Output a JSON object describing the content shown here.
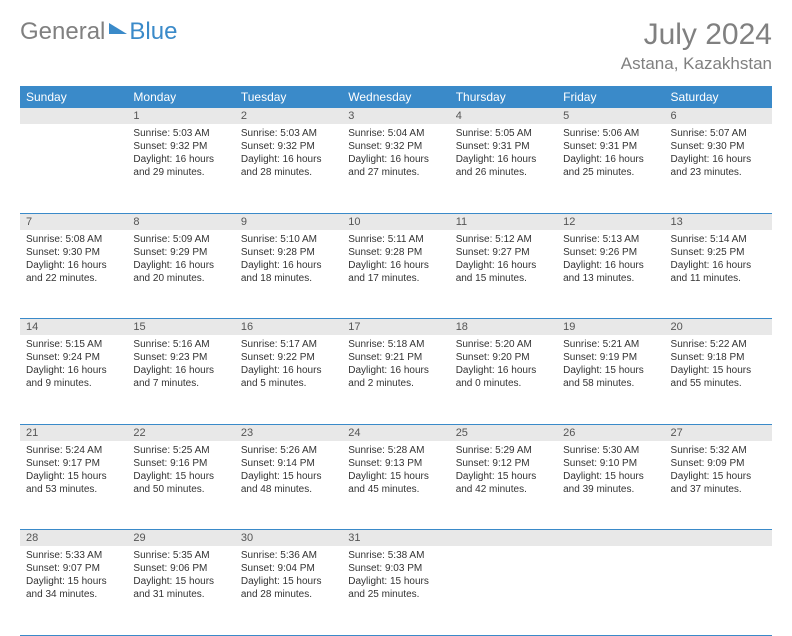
{
  "brand": {
    "part1": "General",
    "part2": "Blue"
  },
  "title": "July 2024",
  "location": "Astana, Kazakhstan",
  "colors": {
    "accent": "#3a8ac9",
    "gray_text": "#808080",
    "daynum_bg": "#e8e8e8",
    "cell_text": "#333333",
    "background": "#ffffff"
  },
  "weekdays": [
    "Sunday",
    "Monday",
    "Tuesday",
    "Wednesday",
    "Thursday",
    "Friday",
    "Saturday"
  ],
  "weeks": [
    [
      null,
      {
        "n": "1",
        "sunrise": "Sunrise: 5:03 AM",
        "sunset": "Sunset: 9:32 PM",
        "day1": "Daylight: 16 hours",
        "day2": "and 29 minutes."
      },
      {
        "n": "2",
        "sunrise": "Sunrise: 5:03 AM",
        "sunset": "Sunset: 9:32 PM",
        "day1": "Daylight: 16 hours",
        "day2": "and 28 minutes."
      },
      {
        "n": "3",
        "sunrise": "Sunrise: 5:04 AM",
        "sunset": "Sunset: 9:32 PM",
        "day1": "Daylight: 16 hours",
        "day2": "and 27 minutes."
      },
      {
        "n": "4",
        "sunrise": "Sunrise: 5:05 AM",
        "sunset": "Sunset: 9:31 PM",
        "day1": "Daylight: 16 hours",
        "day2": "and 26 minutes."
      },
      {
        "n": "5",
        "sunrise": "Sunrise: 5:06 AM",
        "sunset": "Sunset: 9:31 PM",
        "day1": "Daylight: 16 hours",
        "day2": "and 25 minutes."
      },
      {
        "n": "6",
        "sunrise": "Sunrise: 5:07 AM",
        "sunset": "Sunset: 9:30 PM",
        "day1": "Daylight: 16 hours",
        "day2": "and 23 minutes."
      }
    ],
    [
      {
        "n": "7",
        "sunrise": "Sunrise: 5:08 AM",
        "sunset": "Sunset: 9:30 PM",
        "day1": "Daylight: 16 hours",
        "day2": "and 22 minutes."
      },
      {
        "n": "8",
        "sunrise": "Sunrise: 5:09 AM",
        "sunset": "Sunset: 9:29 PM",
        "day1": "Daylight: 16 hours",
        "day2": "and 20 minutes."
      },
      {
        "n": "9",
        "sunrise": "Sunrise: 5:10 AM",
        "sunset": "Sunset: 9:28 PM",
        "day1": "Daylight: 16 hours",
        "day2": "and 18 minutes."
      },
      {
        "n": "10",
        "sunrise": "Sunrise: 5:11 AM",
        "sunset": "Sunset: 9:28 PM",
        "day1": "Daylight: 16 hours",
        "day2": "and 17 minutes."
      },
      {
        "n": "11",
        "sunrise": "Sunrise: 5:12 AM",
        "sunset": "Sunset: 9:27 PM",
        "day1": "Daylight: 16 hours",
        "day2": "and 15 minutes."
      },
      {
        "n": "12",
        "sunrise": "Sunrise: 5:13 AM",
        "sunset": "Sunset: 9:26 PM",
        "day1": "Daylight: 16 hours",
        "day2": "and 13 minutes."
      },
      {
        "n": "13",
        "sunrise": "Sunrise: 5:14 AM",
        "sunset": "Sunset: 9:25 PM",
        "day1": "Daylight: 16 hours",
        "day2": "and 11 minutes."
      }
    ],
    [
      {
        "n": "14",
        "sunrise": "Sunrise: 5:15 AM",
        "sunset": "Sunset: 9:24 PM",
        "day1": "Daylight: 16 hours",
        "day2": "and 9 minutes."
      },
      {
        "n": "15",
        "sunrise": "Sunrise: 5:16 AM",
        "sunset": "Sunset: 9:23 PM",
        "day1": "Daylight: 16 hours",
        "day2": "and 7 minutes."
      },
      {
        "n": "16",
        "sunrise": "Sunrise: 5:17 AM",
        "sunset": "Sunset: 9:22 PM",
        "day1": "Daylight: 16 hours",
        "day2": "and 5 minutes."
      },
      {
        "n": "17",
        "sunrise": "Sunrise: 5:18 AM",
        "sunset": "Sunset: 9:21 PM",
        "day1": "Daylight: 16 hours",
        "day2": "and 2 minutes."
      },
      {
        "n": "18",
        "sunrise": "Sunrise: 5:20 AM",
        "sunset": "Sunset: 9:20 PM",
        "day1": "Daylight: 16 hours",
        "day2": "and 0 minutes."
      },
      {
        "n": "19",
        "sunrise": "Sunrise: 5:21 AM",
        "sunset": "Sunset: 9:19 PM",
        "day1": "Daylight: 15 hours",
        "day2": "and 58 minutes."
      },
      {
        "n": "20",
        "sunrise": "Sunrise: 5:22 AM",
        "sunset": "Sunset: 9:18 PM",
        "day1": "Daylight: 15 hours",
        "day2": "and 55 minutes."
      }
    ],
    [
      {
        "n": "21",
        "sunrise": "Sunrise: 5:24 AM",
        "sunset": "Sunset: 9:17 PM",
        "day1": "Daylight: 15 hours",
        "day2": "and 53 minutes."
      },
      {
        "n": "22",
        "sunrise": "Sunrise: 5:25 AM",
        "sunset": "Sunset: 9:16 PM",
        "day1": "Daylight: 15 hours",
        "day2": "and 50 minutes."
      },
      {
        "n": "23",
        "sunrise": "Sunrise: 5:26 AM",
        "sunset": "Sunset: 9:14 PM",
        "day1": "Daylight: 15 hours",
        "day2": "and 48 minutes."
      },
      {
        "n": "24",
        "sunrise": "Sunrise: 5:28 AM",
        "sunset": "Sunset: 9:13 PM",
        "day1": "Daylight: 15 hours",
        "day2": "and 45 minutes."
      },
      {
        "n": "25",
        "sunrise": "Sunrise: 5:29 AM",
        "sunset": "Sunset: 9:12 PM",
        "day1": "Daylight: 15 hours",
        "day2": "and 42 minutes."
      },
      {
        "n": "26",
        "sunrise": "Sunrise: 5:30 AM",
        "sunset": "Sunset: 9:10 PM",
        "day1": "Daylight: 15 hours",
        "day2": "and 39 minutes."
      },
      {
        "n": "27",
        "sunrise": "Sunrise: 5:32 AM",
        "sunset": "Sunset: 9:09 PM",
        "day1": "Daylight: 15 hours",
        "day2": "and 37 minutes."
      }
    ],
    [
      {
        "n": "28",
        "sunrise": "Sunrise: 5:33 AM",
        "sunset": "Sunset: 9:07 PM",
        "day1": "Daylight: 15 hours",
        "day2": "and 34 minutes."
      },
      {
        "n": "29",
        "sunrise": "Sunrise: 5:35 AM",
        "sunset": "Sunset: 9:06 PM",
        "day1": "Daylight: 15 hours",
        "day2": "and 31 minutes."
      },
      {
        "n": "30",
        "sunrise": "Sunrise: 5:36 AM",
        "sunset": "Sunset: 9:04 PM",
        "day1": "Daylight: 15 hours",
        "day2": "and 28 minutes."
      },
      {
        "n": "31",
        "sunrise": "Sunrise: 5:38 AM",
        "sunset": "Sunset: 9:03 PM",
        "day1": "Daylight: 15 hours",
        "day2": "and 25 minutes."
      },
      null,
      null,
      null
    ]
  ]
}
